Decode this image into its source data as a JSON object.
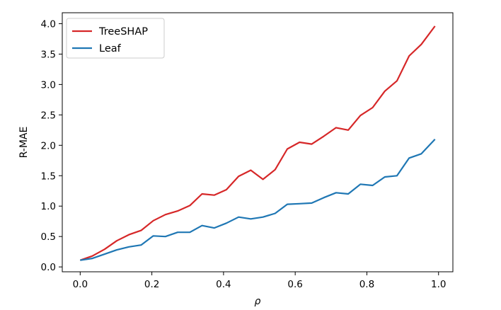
{
  "chart_data": {
    "type": "line",
    "xlabel": "ρ",
    "ylabel": "R-MAE",
    "xlim": [
      -0.05,
      1.04
    ],
    "ylim": [
      -0.08,
      4.18
    ],
    "xticks": [
      "0.0",
      "0.2",
      "0.4",
      "0.6",
      "0.8",
      "1.0"
    ],
    "yticks": [
      "0.0",
      "0.5",
      "1.0",
      "1.5",
      "2.0",
      "2.5",
      "3.0",
      "3.5",
      "4.0"
    ],
    "grid": false,
    "legend_position": "top-left",
    "x": [
      0.0,
      0.034,
      0.068,
      0.102,
      0.136,
      0.17,
      0.204,
      0.238,
      0.272,
      0.306,
      0.34,
      0.374,
      0.408,
      0.442,
      0.476,
      0.51,
      0.544,
      0.578,
      0.612,
      0.646,
      0.68,
      0.714,
      0.748,
      0.782,
      0.816,
      0.85,
      0.884,
      0.918,
      0.952,
      0.99
    ],
    "series": [
      {
        "name": "TreeSHAP",
        "color": "#d62728",
        "values": [
          0.11,
          0.18,
          0.29,
          0.43,
          0.53,
          0.6,
          0.76,
          0.86,
          0.92,
          1.01,
          1.2,
          1.18,
          1.27,
          1.49,
          1.59,
          1.44,
          1.6,
          1.94,
          2.05,
          2.02,
          2.15,
          2.29,
          2.25,
          2.49,
          2.62,
          2.89,
          3.06,
          3.47,
          3.66,
          3.96
        ]
      },
      {
        "name": "Leaf",
        "color": "#1f77b4",
        "values": [
          0.11,
          0.14,
          0.21,
          0.28,
          0.33,
          0.36,
          0.51,
          0.5,
          0.57,
          0.57,
          0.68,
          0.64,
          0.72,
          0.82,
          0.79,
          0.82,
          0.88,
          1.03,
          1.04,
          1.05,
          1.14,
          1.22,
          1.2,
          1.36,
          1.34,
          1.48,
          1.5,
          1.79,
          1.86,
          2.1
        ]
      }
    ]
  }
}
